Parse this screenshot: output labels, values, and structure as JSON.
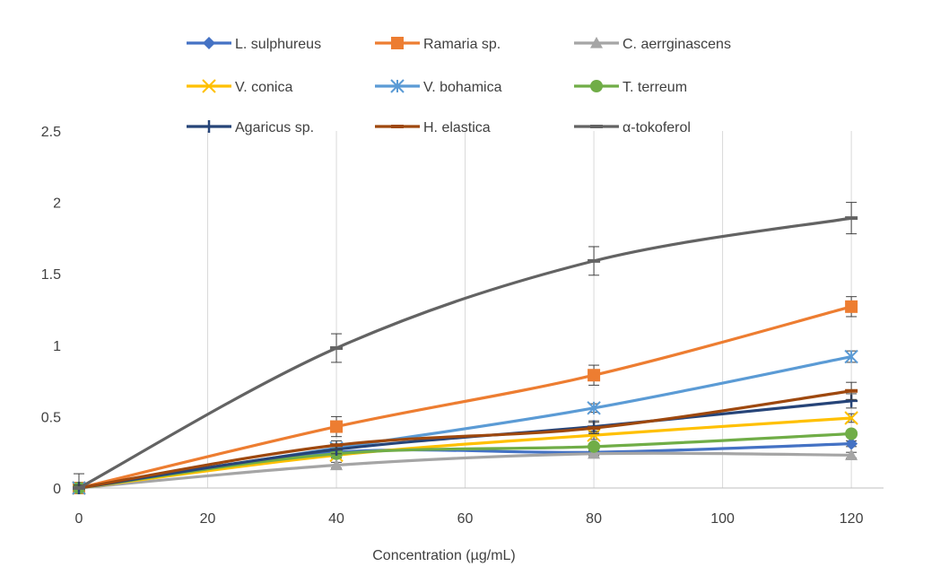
{
  "chart_data": {
    "type": "line",
    "title": "",
    "xlabel": "Concentration (µg/mL)",
    "ylabel": "",
    "xlim": [
      0,
      125
    ],
    "ylim": [
      0,
      2.5
    ],
    "x_ticks": [
      0,
      20,
      40,
      60,
      80,
      100,
      120
    ],
    "x_tick_labels": [
      "0",
      "20",
      "40",
      "60",
      "80",
      "100",
      "120"
    ],
    "y_ticks": [
      0,
      0.5,
      1,
      1.5,
      2,
      2.5
    ],
    "y_tick_labels": [
      "0",
      "0.5",
      "1",
      "1.5",
      "2",
      "2.5"
    ],
    "grid": "vertical",
    "legend_position": "top",
    "x": [
      0,
      40,
      80,
      120
    ],
    "series": [
      {
        "name": "L. sulphureus",
        "color": "#4472C4",
        "marker": "diamond",
        "values": [
          0.0,
          0.25,
          0.25,
          0.31
        ],
        "errors": [
          0.02,
          0.02,
          0.02,
          0.02
        ]
      },
      {
        "name": "Ramaria sp.",
        "color": "#ED7D31",
        "marker": "square",
        "values": [
          0.0,
          0.43,
          0.79,
          1.27
        ],
        "errors": [
          0.02,
          0.07,
          0.07,
          0.07
        ]
      },
      {
        "name": "C. aerrginascens",
        "color": "#A5A5A5",
        "marker": "triangle",
        "values": [
          0.0,
          0.16,
          0.24,
          0.23
        ],
        "errors": [
          0.02,
          0.02,
          0.02,
          0.02
        ]
      },
      {
        "name": "V. conica",
        "color": "#FFC000",
        "marker": "x",
        "values": [
          0.0,
          0.23,
          0.37,
          0.49
        ],
        "errors": [
          0.02,
          0.02,
          0.03,
          0.03
        ]
      },
      {
        "name": "V. bohamica",
        "color": "#5B9BD5",
        "marker": "star",
        "values": [
          0.0,
          0.28,
          0.56,
          0.92
        ],
        "errors": [
          0.02,
          0.02,
          0.03,
          0.04
        ]
      },
      {
        "name": "T. terreum",
        "color": "#70AD47",
        "marker": "circle",
        "values": [
          0.0,
          0.24,
          0.29,
          0.38
        ],
        "errors": [
          0.02,
          0.02,
          0.02,
          0.02
        ]
      },
      {
        "name": "Agaricus sp.",
        "color": "#264478",
        "marker": "plus",
        "values": [
          0.0,
          0.27,
          0.43,
          0.61
        ],
        "errors": [
          0.02,
          0.03,
          0.04,
          0.05
        ]
      },
      {
        "name": "H. elastica",
        "color": "#9E480E",
        "marker": "dash",
        "values": [
          0.0,
          0.3,
          0.42,
          0.68
        ],
        "errors": [
          0.02,
          0.03,
          0.04,
          0.06
        ]
      },
      {
        "name": "α-tokoferol",
        "color": "#636363",
        "marker": "dash",
        "values": [
          0.0,
          0.98,
          1.59,
          1.89
        ],
        "errors": [
          0.1,
          0.1,
          0.1,
          0.11
        ]
      }
    ]
  }
}
